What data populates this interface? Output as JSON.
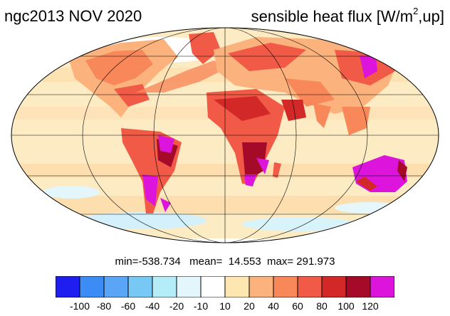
{
  "title": {
    "left": "ngc2013 NOV 2020",
    "right_prefix": "sensible heat flux [W/m",
    "right_sup": "2",
    "right_suffix": ",up]"
  },
  "stats": {
    "text": "min=-538.734   mean=  14.553  max= 291.973"
  },
  "colorbar": {
    "labels": [
      "-100",
      "-80",
      "-60",
      "-40",
      "-20",
      "-10",
      "10",
      "20",
      "40",
      "60",
      "80",
      "100",
      "120"
    ],
    "colors": [
      "#1e1ef0",
      "#3c8cf5",
      "#5aa5f5",
      "#78c8f5",
      "#b4ecf8",
      "#e2f6fb",
      "#ffffff",
      "#fee6b0",
      "#fbb27c",
      "#f8885a",
      "#f05a46",
      "#d22828",
      "#a50a28",
      "#dc14dc"
    ]
  },
  "map": {
    "projection": "mollweide",
    "grid": true,
    "colors": {
      "land_warm": "#e8643c",
      "ocean_neutral": "#fde8c0",
      "hot": "#dc14dc"
    }
  }
}
